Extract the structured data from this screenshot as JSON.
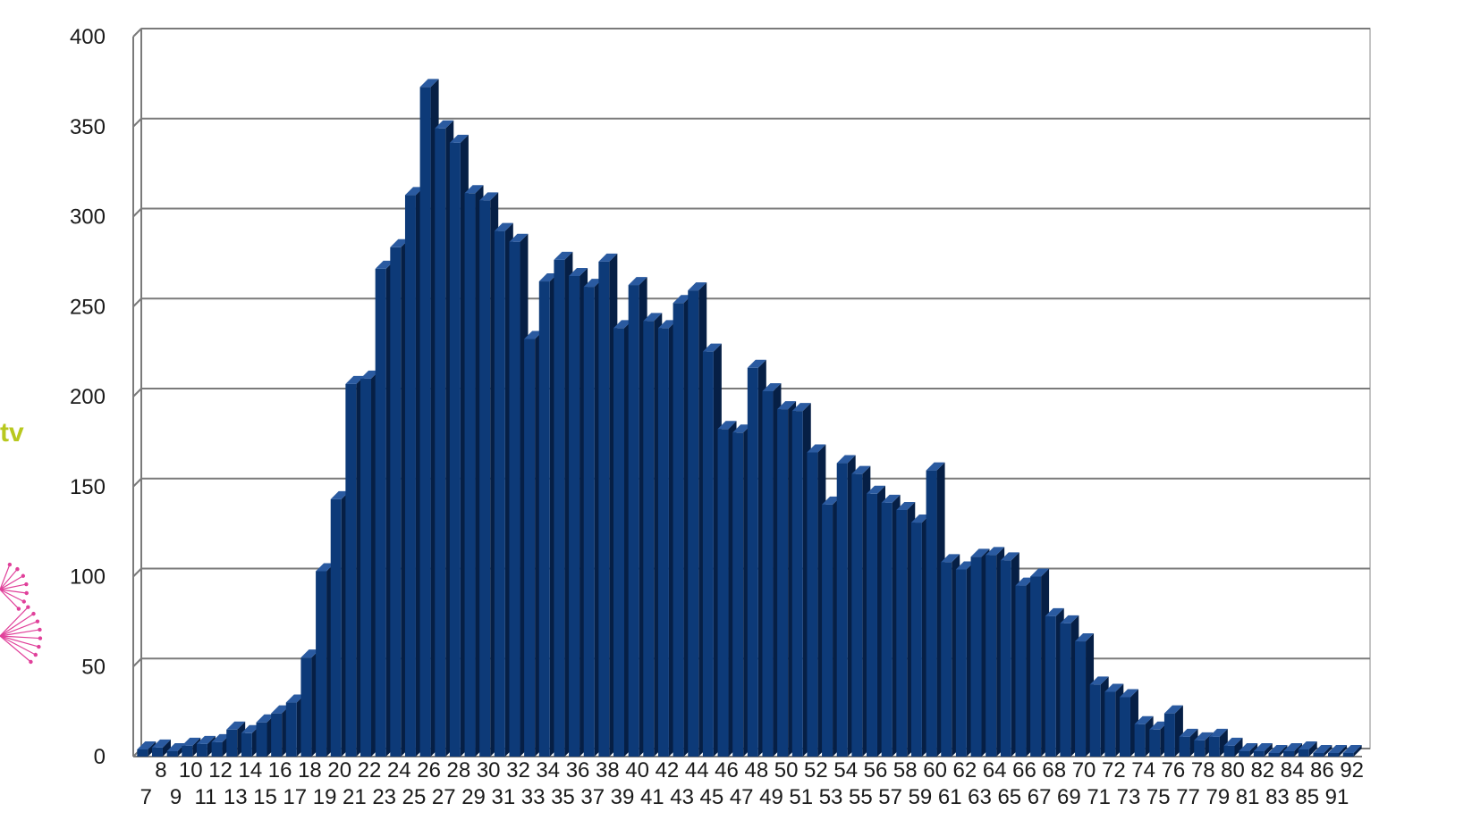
{
  "side_text": "tv",
  "colors": {
    "bar_front": "#0d3a78",
    "bar_top": "#2a5aa0",
    "bar_side": "#061f45",
    "grid": "#7a7a7a",
    "side_text": "#b8c81e",
    "flower": "#e0409a"
  },
  "icons": [
    "pink-flower-decoration-icon"
  ],
  "chart_data": {
    "type": "bar",
    "title": "",
    "xlabel": "",
    "ylabel": "",
    "ylim": [
      0,
      400
    ],
    "yticks": [
      0,
      50,
      100,
      150,
      200,
      250,
      300,
      350,
      400
    ],
    "grid": true,
    "style": "3d",
    "categories": [
      "7",
      "8",
      "9",
      "10",
      "11",
      "12",
      "13",
      "14",
      "15",
      "16",
      "17",
      "18",
      "19",
      "20",
      "21",
      "22",
      "23",
      "24",
      "25",
      "26",
      "27",
      "28",
      "29",
      "30",
      "31",
      "32",
      "33",
      "34",
      "35",
      "36",
      "37",
      "38",
      "39",
      "40",
      "41",
      "42",
      "43",
      "44",
      "45",
      "46",
      "47",
      "48",
      "49",
      "50",
      "51",
      "52",
      "53",
      "54",
      "55",
      "56",
      "57",
      "58",
      "59",
      "60",
      "61",
      "62",
      "63",
      "64",
      "65",
      "66",
      "67",
      "68",
      "69",
      "70",
      "71",
      "72",
      "73",
      "74",
      "75",
      "76",
      "77",
      "78",
      "79",
      "80",
      "81",
      "82",
      "83",
      "84",
      "85",
      "86",
      "91",
      "92"
    ],
    "values": [
      4,
      5,
      3,
      6,
      7,
      8,
      15,
      13,
      19,
      24,
      30,
      55,
      103,
      143,
      207,
      210,
      271,
      283,
      312,
      372,
      349,
      341,
      313,
      309,
      292,
      286,
      232,
      264,
      276,
      267,
      261,
      275,
      238,
      262,
      242,
      238,
      252,
      259,
      225,
      182,
      180,
      216,
      203,
      193,
      192,
      169,
      140,
      163,
      157,
      146,
      141,
      137,
      130,
      159,
      108,
      104,
      111,
      112,
      109,
      95,
      100,
      78,
      74,
      64,
      40,
      36,
      33,
      18,
      15,
      24,
      11,
      9,
      11,
      6,
      3,
      3,
      2,
      3,
      4,
      2,
      2,
      2
    ]
  }
}
